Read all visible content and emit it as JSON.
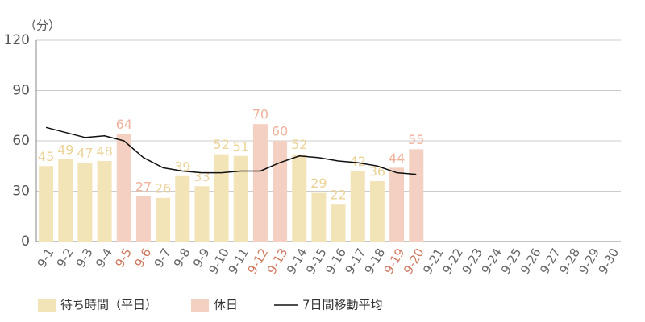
{
  "chart_data": {
    "type": "bar",
    "y_unit": "（分）",
    "categories": [
      "9-1",
      "9-2",
      "9-3",
      "9-4",
      "9-5",
      "9-6",
      "9-7",
      "9-8",
      "9-9",
      "9-10",
      "9-11",
      "9-12",
      "9-13",
      "9-14",
      "9-15",
      "9-16",
      "9-17",
      "9-18",
      "9-19",
      "9-20",
      "9-21",
      "9-22",
      "9-23",
      "9-24",
      "9-25",
      "9-26",
      "9-27",
      "9-28",
      "9-29",
      "9-30"
    ],
    "series": [
      {
        "name": "待ち時間（平日）",
        "color": "#f3e4b8",
        "label_color": "#ecd397",
        "tick_label_color": "#666666",
        "values": [
          45,
          49,
          47,
          48,
          null,
          null,
          26,
          39,
          33,
          52,
          51,
          null,
          null,
          52,
          29,
          22,
          42,
          36,
          null,
          null,
          null,
          null,
          null,
          null,
          null,
          null,
          null,
          null,
          null,
          null
        ]
      },
      {
        "name": "休日",
        "color": "#f4d0c2",
        "label_color": "#efb29c",
        "tick_label_color": "#cf7a60",
        "values": [
          null,
          null,
          null,
          null,
          64,
          27,
          null,
          null,
          null,
          null,
          null,
          70,
          60,
          null,
          null,
          null,
          null,
          null,
          44,
          55,
          null,
          null,
          null,
          null,
          null,
          null,
          null,
          null,
          null,
          null
        ]
      },
      {
        "name": "7日間移動平均",
        "type": "line",
        "color": "#111111",
        "values": [
          68,
          65,
          62,
          63,
          60,
          50,
          44,
          42,
          41,
          41,
          42,
          42,
          47,
          51,
          50,
          48,
          47,
          45,
          41,
          40,
          null,
          null,
          null,
          null,
          null,
          null,
          null,
          null,
          null,
          null
        ]
      }
    ],
    "ylim": [
      0,
      120
    ],
    "yticks": [
      0,
      30,
      60,
      90,
      120
    ],
    "grid": true
  }
}
